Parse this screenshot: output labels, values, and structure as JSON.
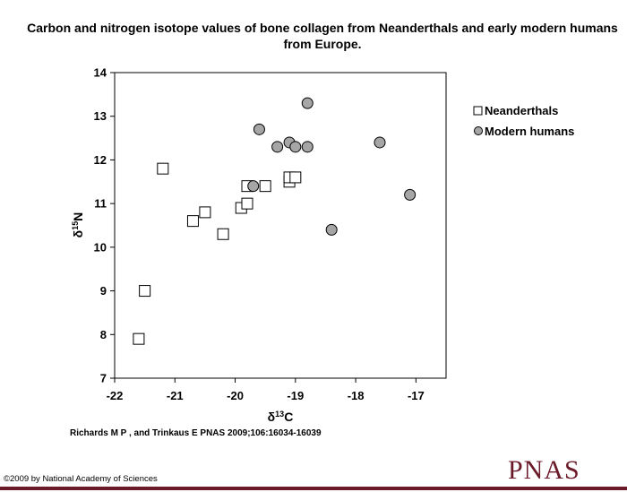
{
  "chart_data": {
    "type": "scatter",
    "title": "Carbon and nitrogen isotope values of bone collagen from Neanderthals and early modern humans from Europe.",
    "xlabel": {
      "base": "δ",
      "sup": "13",
      "rest": "C"
    },
    "ylabel": {
      "base": "δ",
      "sup": "15",
      "rest": "N"
    },
    "xlim": [
      -22,
      -16.5
    ],
    "ylim": [
      7,
      14
    ],
    "xticks": [
      -22,
      -21,
      -20,
      -19,
      -18,
      -17
    ],
    "yticks": [
      7,
      8,
      9,
      10,
      11,
      12,
      13,
      14
    ],
    "grid": false,
    "legend_position": "right",
    "series": [
      {
        "name": "Neanderthals",
        "marker": "square",
        "color": "#ffffff",
        "points": [
          {
            "x": -21.6,
            "y": 7.9
          },
          {
            "x": -21.5,
            "y": 9.0
          },
          {
            "x": -21.2,
            "y": 11.8
          },
          {
            "x": -20.7,
            "y": 10.6
          },
          {
            "x": -20.5,
            "y": 10.8
          },
          {
            "x": -20.2,
            "y": 10.3
          },
          {
            "x": -19.9,
            "y": 10.9
          },
          {
            "x": -19.8,
            "y": 11.0
          },
          {
            "x": -19.8,
            "y": 11.4
          },
          {
            "x": -19.5,
            "y": 11.4
          },
          {
            "x": -19.1,
            "y": 11.5
          },
          {
            "x": -19.1,
            "y": 11.6
          },
          {
            "x": -19.0,
            "y": 11.6
          }
        ]
      },
      {
        "name": "Modern humans",
        "marker": "circle",
        "color": "#a6a6a6",
        "points": [
          {
            "x": -19.6,
            "y": 12.7
          },
          {
            "x": -19.3,
            "y": 12.3
          },
          {
            "x": -19.1,
            "y": 12.4
          },
          {
            "x": -19.0,
            "y": 12.3
          },
          {
            "x": -18.8,
            "y": 12.3
          },
          {
            "x": -18.8,
            "y": 13.3
          },
          {
            "x": -19.7,
            "y": 11.4
          },
          {
            "x": -18.4,
            "y": 10.4
          },
          {
            "x": -17.6,
            "y": 12.4
          },
          {
            "x": -17.1,
            "y": 11.2
          }
        ]
      }
    ]
  },
  "citation": "Richards M P , and Trinkaus E PNAS 2009;106:16034-16039",
  "copyright": "©2009 by National Academy of Sciences",
  "logo_text": "PNAS",
  "brand_color": "#6b1a2a"
}
